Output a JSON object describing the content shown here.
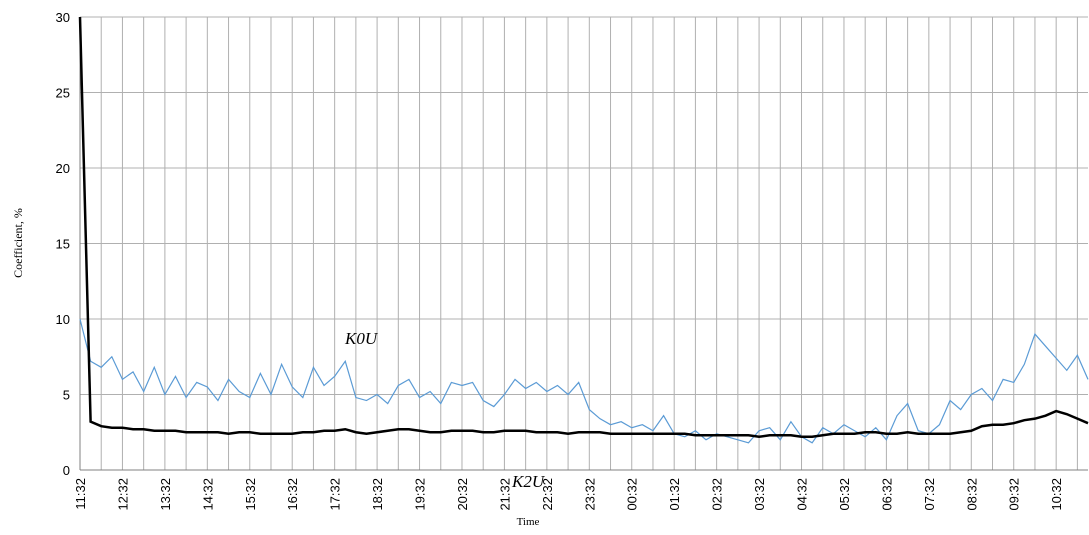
{
  "chart_data": {
    "type": "line",
    "x_label": "Time",
    "y_label": "Coefficient, %",
    "categories": [
      "11:32",
      null,
      null,
      null,
      "12:32",
      null,
      null,
      null,
      "13:32",
      null,
      null,
      null,
      "14:32",
      null,
      null,
      null,
      "15:32",
      null,
      null,
      null,
      "16:32",
      null,
      null,
      null,
      "17:32",
      null,
      null,
      null,
      "18:32",
      null,
      null,
      null,
      "19:32",
      null,
      null,
      null,
      "20:32",
      null,
      null,
      null,
      "21:32",
      null,
      null,
      null,
      "22:32",
      null,
      null,
      null,
      "23:32",
      null,
      null,
      null,
      "00:32",
      null,
      null,
      null,
      "01:32",
      null,
      null,
      null,
      "02:32",
      null,
      null,
      null,
      "03:32",
      null,
      null,
      null,
      "04:32",
      null,
      null,
      null,
      "05:32",
      null,
      null,
      null,
      "06:32",
      null,
      null,
      null,
      "07:32",
      null,
      null,
      null,
      "08:32",
      null,
      null,
      null,
      "09:32",
      null,
      null,
      null,
      "10:32",
      null,
      null,
      null
    ],
    "series": [
      {
        "name": "K0U",
        "color": "#5b9bd5",
        "values": [
          10,
          7.2,
          6.8,
          7.5,
          6.0,
          6.5,
          5.2,
          6.8,
          5.0,
          6.2,
          4.8,
          5.8,
          5.5,
          4.6,
          6.0,
          5.2,
          4.8,
          6.4,
          5.0,
          7.0,
          5.5,
          4.8,
          6.8,
          5.6,
          6.2,
          7.2,
          4.8,
          4.6,
          5.0,
          4.4,
          5.6,
          6.0,
          4.8,
          5.2,
          4.4,
          5.8,
          5.6,
          5.8,
          4.6,
          4.2,
          5.0,
          6.0,
          5.4,
          5.8,
          5.2,
          5.6,
          5.0,
          5.8,
          4.0,
          3.4,
          3.0,
          3.2,
          2.8,
          3.0,
          2.6,
          3.6,
          2.4,
          2.2,
          2.6,
          2.0,
          2.4,
          2.2,
          2.0,
          1.8,
          2.6,
          2.8,
          2.0,
          3.2,
          2.2,
          1.8,
          2.8,
          2.4,
          3.0,
          2.6,
          2.2,
          2.8,
          2.0,
          3.6,
          4.4,
          2.6,
          2.4,
          3.0,
          4.6,
          4.0,
          5.0,
          5.4,
          4.6,
          6.0,
          5.8,
          7.0,
          9.0,
          8.2,
          7.4,
          6.6,
          7.6,
          6.0
        ]
      },
      {
        "name": "K2U",
        "color": "#000000",
        "values": [
          30,
          3.2,
          2.9,
          2.8,
          2.8,
          2.7,
          2.7,
          2.6,
          2.6,
          2.6,
          2.5,
          2.5,
          2.5,
          2.5,
          2.4,
          2.5,
          2.5,
          2.4,
          2.4,
          2.4,
          2.4,
          2.5,
          2.5,
          2.6,
          2.6,
          2.7,
          2.5,
          2.4,
          2.5,
          2.6,
          2.7,
          2.7,
          2.6,
          2.5,
          2.5,
          2.6,
          2.6,
          2.6,
          2.5,
          2.5,
          2.6,
          2.6,
          2.6,
          2.5,
          2.5,
          2.5,
          2.4,
          2.5,
          2.5,
          2.5,
          2.4,
          2.4,
          2.4,
          2.4,
          2.4,
          2.4,
          2.4,
          2.4,
          2.3,
          2.3,
          2.3,
          2.3,
          2.3,
          2.3,
          2.2,
          2.3,
          2.3,
          2.3,
          2.2,
          2.2,
          2.3,
          2.4,
          2.4,
          2.4,
          2.5,
          2.5,
          2.4,
          2.4,
          2.5,
          2.4,
          2.4,
          2.4,
          2.4,
          2.5,
          2.6,
          2.9,
          3.0,
          3.0,
          3.1,
          3.3,
          3.4,
          3.6,
          3.9,
          3.7,
          3.4,
          3.1
        ]
      }
    ],
    "ylim": [
      0,
      30
    ],
    "yticks": [
      0,
      5,
      10,
      15,
      20,
      25,
      30
    ],
    "grid": true
  }
}
